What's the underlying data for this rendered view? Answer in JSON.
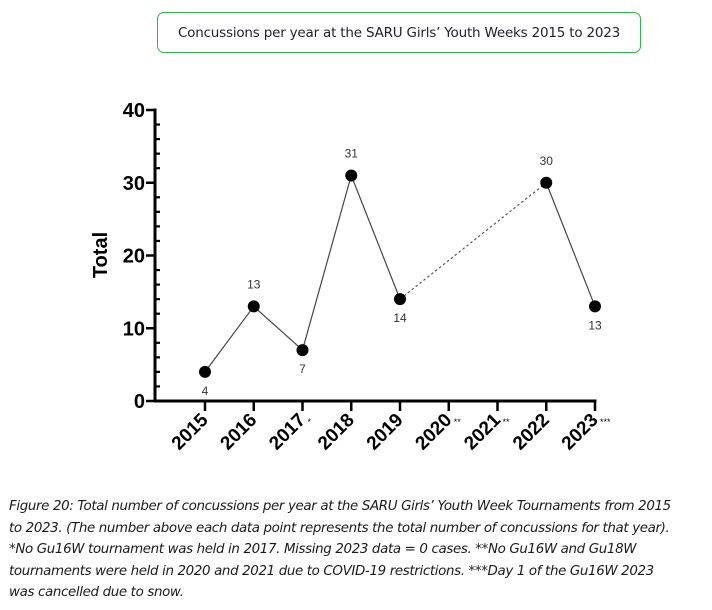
{
  "title_box": {
    "text": "Concussions per year at the SARU Girls’ Youth Weeks 2015 to 2023",
    "border_color": "#2fb350"
  },
  "chart_data": {
    "type": "line",
    "title": "Concussions per year at the SARU Girls’ Youth Weeks 2015 to 2023",
    "xlabel": "",
    "ylabel": "Total",
    "ylim": [
      0,
      40
    ],
    "yticks": [
      0,
      10,
      20,
      30,
      40
    ],
    "yminor_step": 2,
    "grid": false,
    "legend": "none",
    "categories": [
      "2015",
      "2016",
      "2017",
      "2018",
      "2019",
      "2020",
      "2021",
      "2022",
      "2023"
    ],
    "category_marks": [
      "",
      "",
      "*",
      "",
      "",
      "**",
      "**",
      "",
      "***"
    ],
    "series": [
      {
        "name": "Total",
        "values": [
          4,
          13,
          7,
          31,
          14,
          null,
          null,
          30,
          13
        ],
        "labels": [
          "4",
          "13",
          "7",
          "31",
          "14",
          "",
          "",
          "30",
          "13"
        ],
        "label_position": [
          "below",
          "above",
          "below",
          "above",
          "below",
          "",
          "",
          "above",
          "below"
        ],
        "color": "#000000"
      }
    ],
    "gap_connection": {
      "from": "2019",
      "to": "2022",
      "style": "dotted"
    }
  },
  "caption": {
    "lines": [
      "Figure 20: Total number of concussions per year at the SARU Girls’ Youth Week Tournaments from 2015",
      "to 2023. (The number above each data point represents the total number of concussions for that year).",
      "*No Gu16W tournament was held in 2017. Missing 2023 data = 0 cases. **No Gu16W and Gu18W",
      "tournaments were held in 2020 and 2021 due to COVID-19 restrictions. ***Day 1 of the Gu16W 2023",
      "was cancelled due to snow."
    ]
  }
}
